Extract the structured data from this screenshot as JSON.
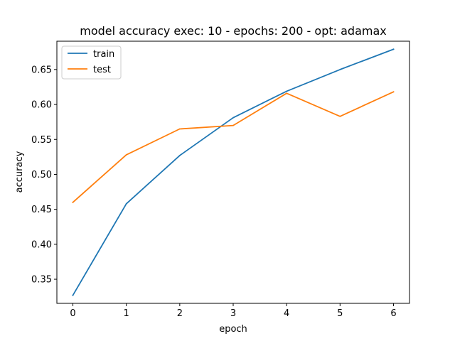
{
  "chart_data": {
    "type": "line",
    "title": "model accuracy exec: 10 - epochs: 200 - opt: adamax",
    "xlabel": "epoch",
    "ylabel": "accuracy",
    "x": [
      0,
      1,
      2,
      3,
      4,
      5,
      6
    ],
    "xlim": [
      -0.3,
      6.3
    ],
    "ylim": [
      0.3155,
      0.6905
    ],
    "xticks": [
      "0",
      "1",
      "2",
      "3",
      "4",
      "5",
      "6"
    ],
    "yticks": [
      "0.35",
      "0.40",
      "0.45",
      "0.50",
      "0.55",
      "0.60",
      "0.65"
    ],
    "ytick_values": [
      0.35,
      0.4,
      0.45,
      0.5,
      0.55,
      0.6,
      0.65
    ],
    "grid": false,
    "legend_position": "top-left",
    "series": [
      {
        "name": "train",
        "color": "#1f77b4",
        "values": [
          0.327,
          0.458,
          0.527,
          0.581,
          0.619,
          0.65,
          0.679
        ]
      },
      {
        "name": "test",
        "color": "#ff7f0e",
        "values": [
          0.46,
          0.528,
          0.565,
          0.57,
          0.616,
          0.583,
          0.618
        ]
      }
    ]
  }
}
